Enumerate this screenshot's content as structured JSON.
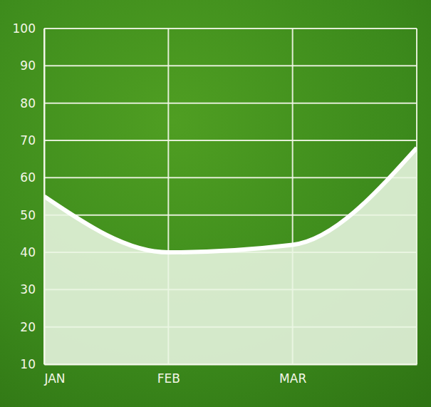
{
  "chart_data": {
    "type": "area",
    "categories": [
      "JAN",
      "FEB",
      "MAR",
      null
    ],
    "values": [
      55,
      40,
      42,
      68
    ],
    "color": "#e9f6e2",
    "ylim": [
      10,
      100
    ],
    "yticks": [
      10,
      20,
      30,
      40,
      50,
      60,
      70,
      80,
      90,
      100
    ],
    "grid": true
  }
}
